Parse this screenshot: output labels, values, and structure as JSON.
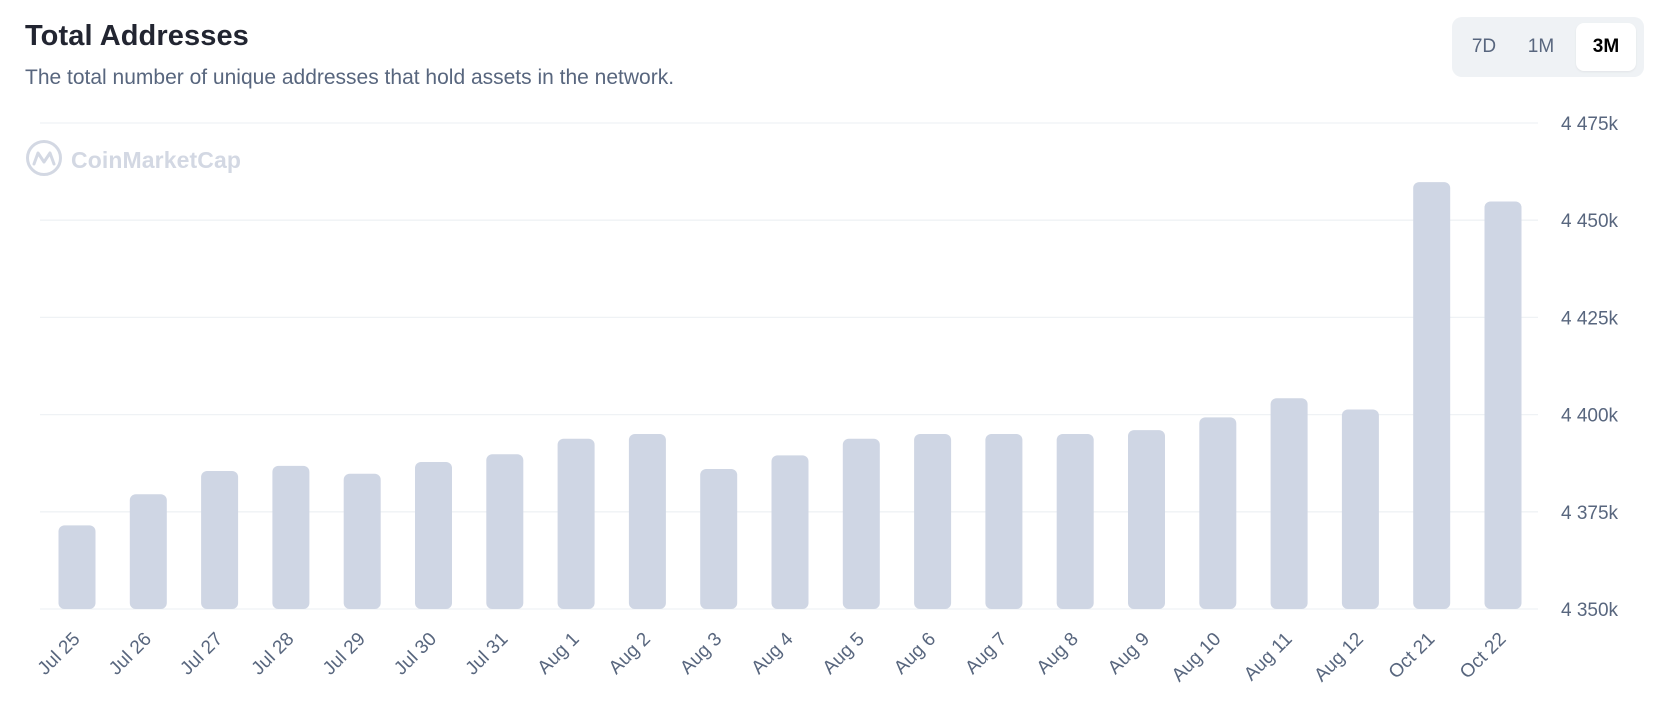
{
  "header": {
    "title": "Total Addresses",
    "subtitle": "The total number of unique addresses that hold assets in the network."
  },
  "range_selector": {
    "options": [
      "7D",
      "1M",
      "3M"
    ],
    "selected": "3M"
  },
  "watermark": {
    "text": "CoinMarketCap",
    "icon": "coinmarketcap-logo-icon"
  },
  "colors": {
    "bar": "#cfd6e4",
    "grid": "#eff2f5",
    "title": "#222531",
    "muted_text": "#58667e"
  },
  "chart_data": {
    "type": "bar",
    "title": "Total Addresses",
    "xlabel": "",
    "ylabel": "",
    "ylim": [
      4350000,
      4475000
    ],
    "y_ticks": [
      4350000,
      4375000,
      4400000,
      4425000,
      4450000,
      4475000
    ],
    "y_tick_labels": [
      "4 350k",
      "4 375k",
      "4 400k",
      "4 425k",
      "4 450k",
      "4 475k"
    ],
    "y_axis_position": "right",
    "grid": true,
    "categories": [
      "Jul 25",
      "Jul 26",
      "Jul 27",
      "Jul 28",
      "Jul 29",
      "Jul 30",
      "Jul 31",
      "Aug 1",
      "Aug 2",
      "Aug 3",
      "Aug 4",
      "Aug 5",
      "Aug 6",
      "Aug 7",
      "Aug 8",
      "Aug 9",
      "Aug 10",
      "Aug 11",
      "Aug 12",
      "Oct 21",
      "Oct 22"
    ],
    "values": [
      4371500,
      4379500,
      4385500,
      4386800,
      4384800,
      4387800,
      4389800,
      4393800,
      4395000,
      4386000,
      4389500,
      4393800,
      4395000,
      4395000,
      4395000,
      4396000,
      4399300,
      4404200,
      4401300,
      4459800,
      4454800
    ]
  }
}
